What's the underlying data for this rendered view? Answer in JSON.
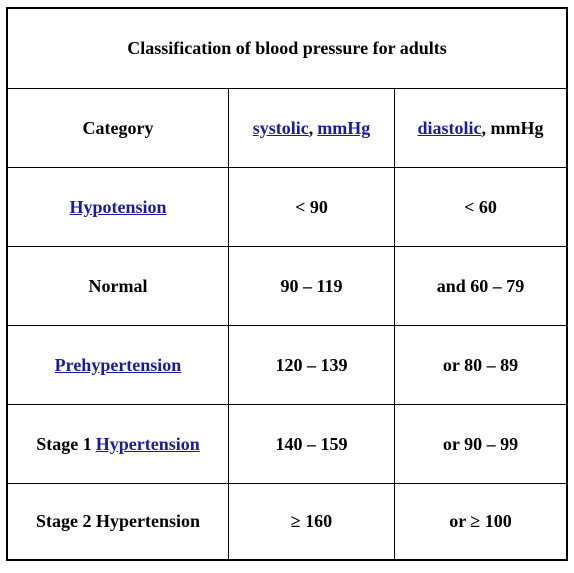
{
  "table": {
    "title": "Classification of blood pressure for adults",
    "header": {
      "category": "Category",
      "systolic_link": "systolic",
      "systolic_sep": ",",
      "systolic_unit": "mmHg",
      "diastolic_link": "diastolic",
      "diastolic_unit": ", mmHg"
    },
    "rows": [
      {
        "category": "Hypotension",
        "systolic": "< 90",
        "diastolic": "< 60"
      },
      {
        "category": "Normal",
        "systolic": "90 – 119",
        "diastolic": "and 60 – 79"
      },
      {
        "category": "Prehypertension",
        "systolic": "120 – 139",
        "diastolic": "or 80 – 89"
      },
      {
        "category_prefix": "Stage 1",
        "category_link": "Hypertension",
        "systolic": "140 – 159",
        "diastolic": "or 90 – 99"
      },
      {
        "category": "Stage 2 Hypertension",
        "systolic": "≥ 160",
        "diastolic": "or ≥ 100"
      }
    ],
    "colors": {
      "link": "#1a1aa6",
      "border": "#000000",
      "text": "#000000"
    }
  }
}
